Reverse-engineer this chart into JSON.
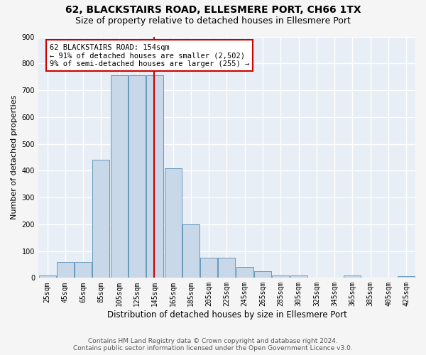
{
  "title": "62, BLACKSTAIRS ROAD, ELLESMERE PORT, CH66 1TX",
  "subtitle": "Size of property relative to detached houses in Ellesmere Port",
  "xlabel": "Distribution of detached houses by size in Ellesmere Port",
  "ylabel": "Number of detached properties",
  "footer_line1": "Contains HM Land Registry data © Crown copyright and database right 2024.",
  "footer_line2": "Contains public sector information licensed under the Open Government Licence v3.0.",
  "annotation_line1": "62 BLACKSTAIRS ROAD: 154sqm",
  "annotation_line2": "← 91% of detached houses are smaller (2,502)",
  "annotation_line3": "9% of semi-detached houses are larger (255) →",
  "bin_starts": [
    25,
    45,
    65,
    85,
    105,
    125,
    145,
    165,
    185,
    205,
    225,
    245,
    265,
    285,
    305,
    325,
    345,
    365,
    385,
    405,
    425
  ],
  "bar_values": [
    10,
    60,
    60,
    440,
    755,
    755,
    755,
    410,
    200,
    75,
    75,
    40,
    25,
    10,
    10,
    0,
    0,
    10,
    0,
    0,
    5
  ],
  "bar_color": "#c8d8e8",
  "bar_edgecolor": "#6699bb",
  "vline_x": 154,
  "vline_color": "#cc0000",
  "annotation_box_edgecolor": "#cc0000",
  "ylim": [
    0,
    900
  ],
  "yticks": [
    0,
    100,
    200,
    300,
    400,
    500,
    600,
    700,
    800,
    900
  ],
  "xlim_left": 25,
  "xlim_right": 445,
  "bin_width": 20,
  "plot_bg_color": "#e8eef5",
  "fig_bg_color": "#f5f5f5",
  "grid_color": "#ffffff",
  "title_fontsize": 10,
  "subtitle_fontsize": 9,
  "ylabel_fontsize": 8,
  "xlabel_fontsize": 8.5,
  "tick_fontsize": 7,
  "annotation_fontsize": 7.5,
  "footer_fontsize": 6.5
}
